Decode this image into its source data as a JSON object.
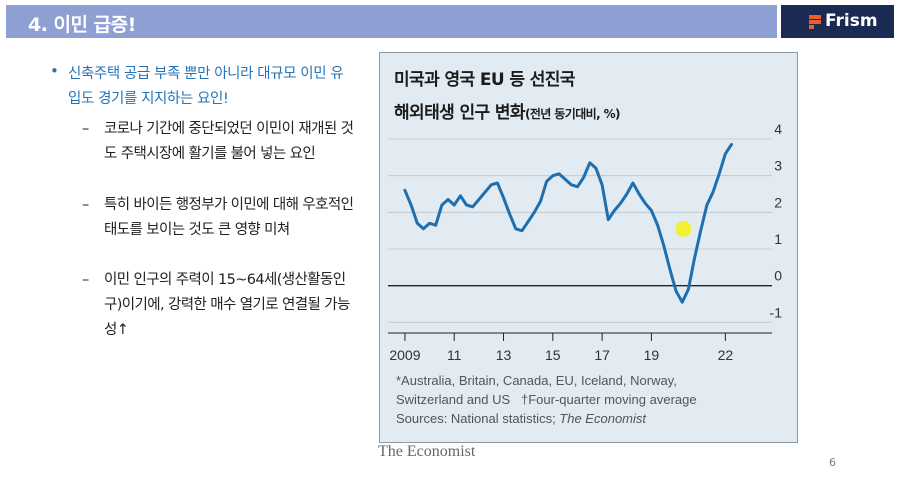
{
  "header": {
    "title": "4. 이민 급증!",
    "brand": "Frism"
  },
  "content": {
    "bullet": "신축주택 공급 부족 뿐만 아니라 대규모 이민 유입도 경기를 지지하는 요인!",
    "subs": [
      "코로나 기간에 중단되었던 이민이 재개된 것도 주택시장에 활기를 불어 넣는 요인",
      "특히 바이든 행정부가 이민에 대해 우호적인 태도를 보이는 것도 큰 영향 미쳐",
      "이민 인구의 주력이 15~64세(생산활동인구)이기에, 강력한 매수 열기로 연결될 가능성↑"
    ]
  },
  "figure": {
    "title_line1": "미국과 영국 EU 등 선진국",
    "title_line2": "해외태생 인구 변화",
    "title_unit": "(전년 동기대비, %)",
    "footnote_line1": "*Australia, Britain, Canada, EU, Iceland, Norway,",
    "footnote_line2": "Switzerland and US",
    "footnote_dagger": "†Four-quarter moving average",
    "footnote_line3": "Sources: National statistics; ",
    "footnote_source_italic": "The Economist",
    "credit": "The Economist"
  },
  "chart_data": {
    "type": "line",
    "title": "미국과 영국 EU 등 선진국 해외태생 인구 변화",
    "ylabel": "(전년 동기대비, %)",
    "x_tick_labels": [
      "2009",
      "11",
      "13",
      "15",
      "17",
      "19",
      "22"
    ],
    "y_ticks": [
      4,
      3,
      2,
      1,
      0,
      -1
    ],
    "ylim": [
      -1.1,
      4.3
    ],
    "xlim": [
      2008.8,
      2023
    ],
    "grid": "horizontal",
    "line_color": "#1f6fae",
    "highlight_color": "#f2f032",
    "highlight_point": {
      "x": 2020.3,
      "y": 1.55
    },
    "series": [
      {
        "x": [
          2009.0,
          2009.25,
          2009.5,
          2009.75,
          2010.0,
          2010.25,
          2010.5,
          2010.75,
          2011.0,
          2011.25,
          2011.5,
          2011.75,
          2012.0,
          2012.25,
          2012.5,
          2012.75,
          2013.0,
          2013.25,
          2013.5,
          2013.75,
          2014.0,
          2014.25,
          2014.5,
          2014.75,
          2015.0,
          2015.25,
          2015.5,
          2015.75,
          2016.0,
          2016.25,
          2016.5,
          2016.75,
          2017.0,
          2017.25,
          2017.5,
          2017.75,
          2018.0,
          2018.25,
          2018.5,
          2018.75,
          2019.0,
          2019.25,
          2019.5,
          2019.75,
          2020.0,
          2020.25,
          2020.5,
          2020.75,
          2021.0,
          2021.25,
          2021.5,
          2021.75,
          2022.0,
          2022.25
        ],
        "values": [
          2.6,
          2.2,
          1.7,
          1.55,
          1.7,
          1.65,
          2.2,
          2.35,
          2.2,
          2.45,
          2.2,
          2.15,
          2.35,
          2.55,
          2.75,
          2.8,
          2.4,
          1.95,
          1.55,
          1.5,
          1.75,
          2.0,
          2.3,
          2.85,
          3.0,
          3.05,
          2.9,
          2.75,
          2.7,
          2.95,
          3.35,
          3.2,
          2.75,
          1.8,
          2.05,
          2.25,
          2.5,
          2.8,
          2.5,
          2.25,
          2.05,
          1.65,
          1.1,
          0.45,
          -0.15,
          -0.45,
          -0.1,
          0.75,
          1.5,
          2.2,
          2.55,
          3.05,
          3.6,
          3.85
        ]
      }
    ]
  }
}
